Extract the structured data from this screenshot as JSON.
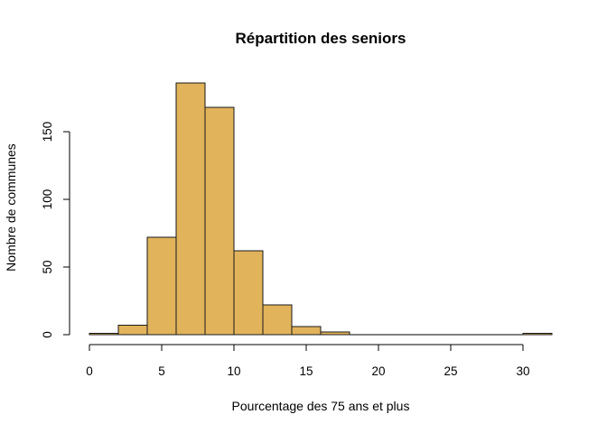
{
  "chart_data": {
    "type": "bar",
    "title": "Répartition des seniors",
    "xlabel": "Pourcentage des 75 ans et plus",
    "ylabel": "Nombre de communes",
    "xlim": [
      0,
      32
    ],
    "ylim": [
      0,
      190
    ],
    "x_ticks": [
      0,
      5,
      10,
      15,
      20,
      25,
      30
    ],
    "y_ticks": [
      0,
      50,
      100,
      150
    ],
    "bar_color": "#E1B35B",
    "bins": [
      {
        "x0": 0,
        "x1": 2,
        "count": 1
      },
      {
        "x0": 2,
        "x1": 4,
        "count": 7
      },
      {
        "x0": 4,
        "x1": 6,
        "count": 72
      },
      {
        "x0": 6,
        "x1": 8,
        "count": 186
      },
      {
        "x0": 8,
        "x1": 10,
        "count": 168
      },
      {
        "x0": 10,
        "x1": 12,
        "count": 62
      },
      {
        "x0": 12,
        "x1": 14,
        "count": 22
      },
      {
        "x0": 14,
        "x1": 16,
        "count": 6
      },
      {
        "x0": 16,
        "x1": 18,
        "count": 2
      },
      {
        "x0": 18,
        "x1": 20,
        "count": 0
      },
      {
        "x0": 20,
        "x1": 22,
        "count": 0
      },
      {
        "x0": 22,
        "x1": 24,
        "count": 0
      },
      {
        "x0": 24,
        "x1": 26,
        "count": 0
      },
      {
        "x0": 26,
        "x1": 28,
        "count": 0
      },
      {
        "x0": 28,
        "x1": 30,
        "count": 0
      },
      {
        "x0": 30,
        "x1": 32,
        "count": 1
      }
    ]
  }
}
